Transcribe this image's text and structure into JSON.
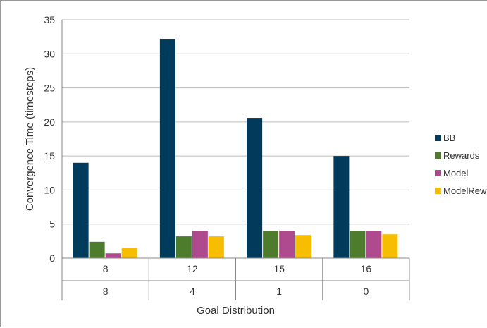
{
  "chart_data": {
    "type": "bar",
    "title": "",
    "xlabel": "Goal Distribution",
    "ylabel": "Convergence Time (timesteps)",
    "ylim": [
      0,
      35
    ],
    "yticks": [
      "0",
      "5",
      "10",
      "15",
      "20",
      "25",
      "30",
      "35"
    ],
    "grid": true,
    "legend_position": "right",
    "category_rows": [
      [
        "8",
        "12",
        "15",
        "16"
      ],
      [
        "8",
        "4",
        "1",
        "0"
      ]
    ],
    "series": [
      {
        "name": "BB",
        "color": "#003b5c",
        "values": [
          14.0,
          32.2,
          20.6,
          15.0
        ]
      },
      {
        "name": "Rewards",
        "color": "#4d7c2d",
        "values": [
          2.4,
          3.2,
          4.0,
          4.0
        ]
      },
      {
        "name": "Model",
        "color": "#b04a8f",
        "values": [
          0.7,
          4.0,
          4.0,
          4.0
        ]
      },
      {
        "name": "ModelRew",
        "color": "#f7be00",
        "values": [
          1.5,
          3.2,
          3.4,
          3.5
        ]
      }
    ]
  }
}
